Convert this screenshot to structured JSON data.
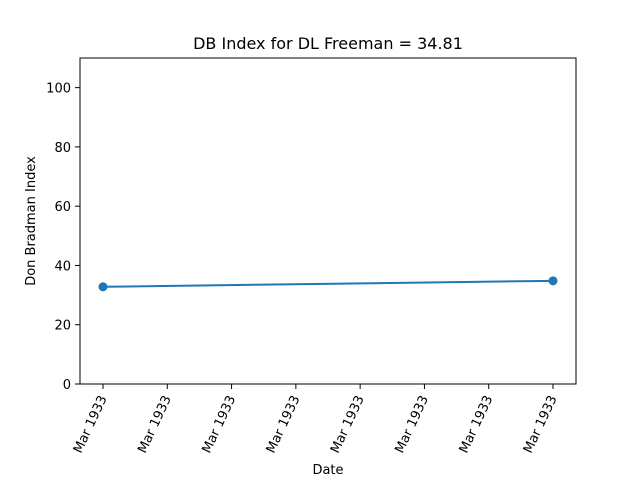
{
  "chart_data": {
    "type": "line",
    "title": "DB Index for DL Freeman = 34.81",
    "xlabel": "Date",
    "ylabel": "Don Bradman Index",
    "ylim": [
      0,
      110
    ],
    "yticks": [
      0,
      20,
      40,
      60,
      80,
      100
    ],
    "x_tick_labels": [
      "Mar 1933",
      "Mar 1933",
      "Mar 1933",
      "Mar 1933",
      "Mar 1933",
      "Mar 1933",
      "Mar 1933",
      "Mar 1933"
    ],
    "grid": false,
    "series": [
      {
        "x": [
          "Mar 1933",
          "Mar 1933"
        ],
        "values": [
          32.8,
          34.81
        ],
        "color": "#1f77b4",
        "marker": "circle"
      }
    ]
  }
}
